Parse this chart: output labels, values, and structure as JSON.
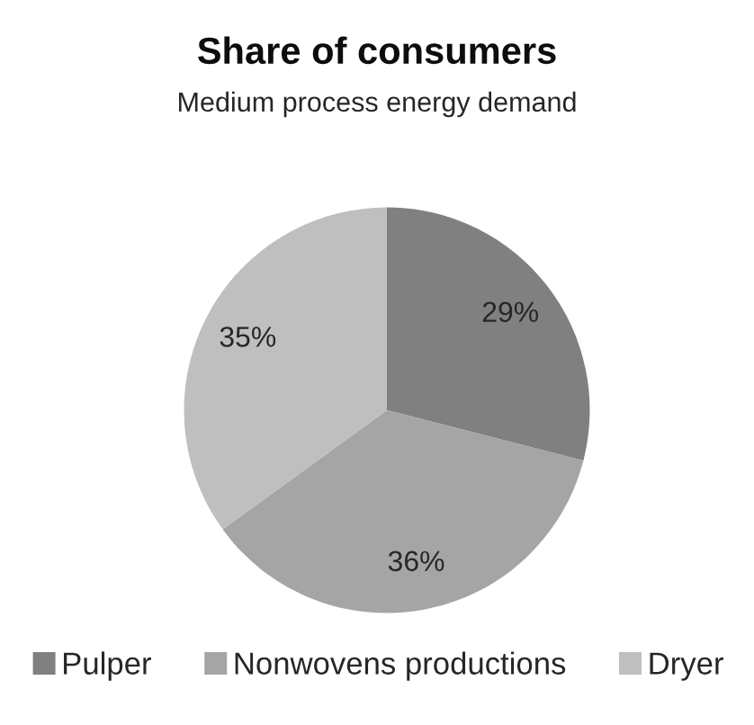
{
  "chart_data": {
    "type": "pie",
    "title": "Share of consumers",
    "subtitle": "Medium process energy demand",
    "categories": [
      "Pulper",
      "Nonwovens productions",
      "Dryer"
    ],
    "values": [
      29,
      36,
      35
    ],
    "colors": [
      "#808080",
      "#a5a5a5",
      "#bfbfbf"
    ],
    "value_labels": [
      "29%",
      "36%",
      "35%"
    ],
    "legend": "bottom"
  }
}
